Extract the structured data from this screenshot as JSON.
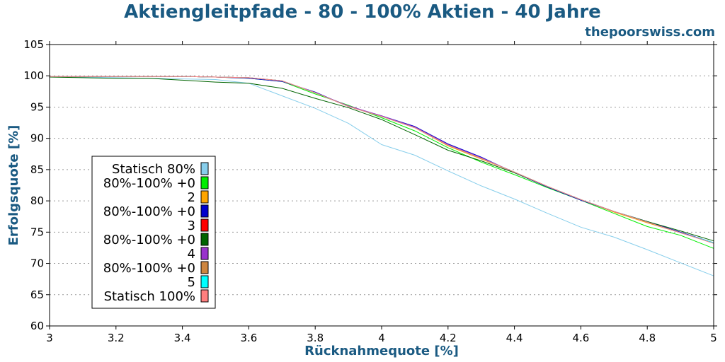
{
  "chart_data": {
    "type": "line",
    "title": "Aktiengleitpfade - 80 - 100% Aktien - 40 Jahre",
    "watermark": "thepoorswiss.com",
    "xlabel": "Rücknahmequote [%]",
    "ylabel": "Erfolgsquote [%]",
    "xlim": [
      3,
      5
    ],
    "ylim": [
      60,
      105
    ],
    "xticks": [
      "3",
      "3.2",
      "3.4",
      "3.6",
      "3.8",
      "4",
      "4.2",
      "4.4",
      "4.6",
      "4.8",
      "5"
    ],
    "yticks": [
      "60",
      "65",
      "70",
      "75",
      "80",
      "85",
      "90",
      "95",
      "100",
      "105"
    ],
    "grid": true,
    "legend_position": "center-left",
    "x": [
      3.0,
      3.1,
      3.2,
      3.3,
      3.4,
      3.5,
      3.6,
      3.7,
      3.8,
      3.9,
      4.0,
      4.1,
      4.2,
      4.3,
      4.4,
      4.5,
      4.6,
      4.7,
      4.8,
      4.9,
      5.0
    ],
    "series": [
      {
        "name": "Statisch 80%",
        "color": "#87ceeb",
        "values": [
          99.9,
          99.8,
          99.7,
          99.6,
          99.5,
          99.4,
          98.8,
          96.8,
          94.8,
          92.4,
          89.0,
          87.3,
          84.8,
          82.4,
          80.3,
          78.0,
          75.8,
          74.2,
          72.2,
          70.1,
          68.0
        ]
      },
      {
        "name": "80%-100% +0",
        "color": "#00ee00",
        "values": [
          99.9,
          99.9,
          99.9,
          99.9,
          99.9,
          99.8,
          99.6,
          99.1,
          97.1,
          95.3,
          93.3,
          91.2,
          88.5,
          86.2,
          84.2,
          82.1,
          80.1,
          78.0,
          75.9,
          74.5,
          72.4
        ]
      },
      {
        "name": "2",
        "color": "#ffa500",
        "values": [
          99.9,
          99.9,
          99.9,
          99.9,
          99.9,
          99.8,
          99.7,
          99.2,
          97.3,
          95.1,
          93.6,
          91.7,
          88.8,
          86.7,
          84.6,
          82.3,
          80.2,
          78.2,
          76.5,
          74.9,
          73.3
        ]
      },
      {
        "name": "80%-100% +0",
        "color": "#0000cd",
        "values": [
          99.9,
          99.9,
          99.9,
          99.9,
          99.9,
          99.8,
          99.6,
          99.1,
          97.4,
          95.1,
          93.6,
          91.9,
          89.1,
          87.0,
          84.5,
          82.2,
          80.1,
          78.3,
          76.7,
          75.0,
          73.3
        ]
      },
      {
        "name": "3",
        "color": "#ff0000",
        "values": [
          99.9,
          99.9,
          99.9,
          99.9,
          99.9,
          99.8,
          99.7,
          99.2,
          97.3,
          95.1,
          93.5,
          91.7,
          88.9,
          86.8,
          84.6,
          82.3,
          80.2,
          78.3,
          76.6,
          74.9,
          73.3
        ]
      },
      {
        "name": "80%-100% +0",
        "color": "#006400",
        "values": [
          99.8,
          99.7,
          99.6,
          99.6,
          99.3,
          99.0,
          98.8,
          98.0,
          96.4,
          94.9,
          93.0,
          90.6,
          88.1,
          86.4,
          84.5,
          82.3,
          80.2,
          78.3,
          76.7,
          75.2,
          73.6
        ]
      },
      {
        "name": "4",
        "color": "#9932cc",
        "values": [
          99.9,
          99.9,
          99.9,
          99.9,
          99.9,
          99.8,
          99.7,
          99.2,
          97.3,
          95.2,
          93.6,
          91.8,
          89.0,
          86.9,
          84.6,
          82.3,
          80.2,
          78.3,
          76.6,
          74.9,
          73.3
        ]
      },
      {
        "name": "80%-100% +0",
        "color": "#cd853f",
        "values": [
          99.9,
          99.9,
          99.9,
          99.9,
          99.9,
          99.8,
          99.7,
          99.2,
          97.3,
          95.1,
          93.5,
          91.7,
          88.9,
          86.8,
          84.6,
          82.3,
          80.2,
          78.3,
          76.6,
          74.9,
          73.3
        ]
      },
      {
        "name": "5",
        "color": "#00ffff",
        "values": [
          99.9,
          99.9,
          99.9,
          99.9,
          99.9,
          99.8,
          99.7,
          99.2,
          97.3,
          95.1,
          93.5,
          91.7,
          88.9,
          86.8,
          84.6,
          82.3,
          80.2,
          78.3,
          76.6,
          74.9,
          73.3
        ]
      },
      {
        "name": "Statisch 100%",
        "color": "#ff7f7f",
        "values": [
          99.9,
          99.9,
          99.9,
          99.9,
          99.9,
          99.8,
          99.7,
          99.2,
          97.3,
          95.1,
          93.5,
          91.7,
          88.9,
          86.8,
          84.6,
          82.3,
          80.2,
          78.3,
          76.6,
          74.9,
          73.2
        ]
      }
    ]
  }
}
